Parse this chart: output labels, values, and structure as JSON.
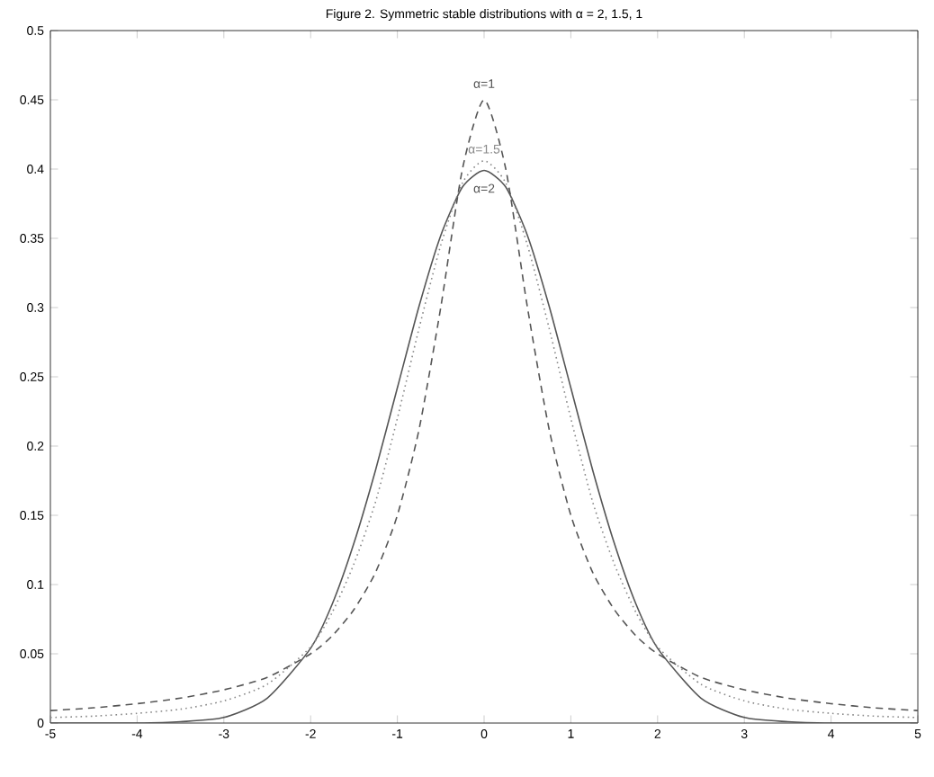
{
  "chart_data": {
    "type": "line",
    "title": "Figure 2. Symmetric stable distributions with α = 2, 1.5, 1",
    "x": [
      -5,
      -4.5,
      -4,
      -3.5,
      -3,
      -2.5,
      -2,
      -1.75,
      -1.5,
      -1.25,
      -1,
      -0.75,
      -0.5,
      -0.25,
      0,
      0.25,
      0.5,
      0.75,
      1,
      1.25,
      1.5,
      1.75,
      2,
      2.5,
      3,
      3.5,
      4,
      4.5,
      5
    ],
    "series": [
      {
        "name": "α=2",
        "color": "#555555",
        "line_style": "solid",
        "values": [
          0,
          0,
          0,
          0.001,
          0.004,
          0.018,
          0.054,
          0.086,
          0.13,
          0.183,
          0.242,
          0.301,
          0.352,
          0.387,
          0.399,
          0.387,
          0.352,
          0.301,
          0.242,
          0.183,
          0.13,
          0.086,
          0.054,
          0.018,
          0.004,
          0.001,
          0,
          0,
          0
        ]
      },
      {
        "name": "α=1.5",
        "color": "#888888",
        "line_style": "dotted",
        "values": [
          0.004,
          0.005,
          0.007,
          0.01,
          0.016,
          0.028,
          0.055,
          0.08,
          0.115,
          0.16,
          0.22,
          0.285,
          0.345,
          0.39,
          0.406,
          0.39,
          0.345,
          0.285,
          0.22,
          0.16,
          0.115,
          0.08,
          0.055,
          0.028,
          0.016,
          0.01,
          0.007,
          0.005,
          0.004
        ]
      },
      {
        "name": "α=1",
        "color": "#555555",
        "line_style": "dashed",
        "values": [
          0.009,
          0.011,
          0.014,
          0.018,
          0.024,
          0.033,
          0.05,
          0.063,
          0.082,
          0.109,
          0.15,
          0.212,
          0.3,
          0.4,
          0.45,
          0.4,
          0.3,
          0.212,
          0.15,
          0.109,
          0.082,
          0.063,
          0.05,
          0.033,
          0.024,
          0.018,
          0.014,
          0.011,
          0.009
        ]
      }
    ],
    "xlim": [
      -5,
      5
    ],
    "ylim": [
      0,
      0.5
    ],
    "xticks": [
      -5,
      -4,
      -3,
      -2,
      -1,
      0,
      1,
      2,
      3,
      4,
      5
    ],
    "yticks": [
      0,
      0.05,
      0.1,
      0.15,
      0.2,
      0.25,
      0.3,
      0.35,
      0.4,
      0.45,
      0.5
    ],
    "grid": false,
    "marker": "none"
  }
}
